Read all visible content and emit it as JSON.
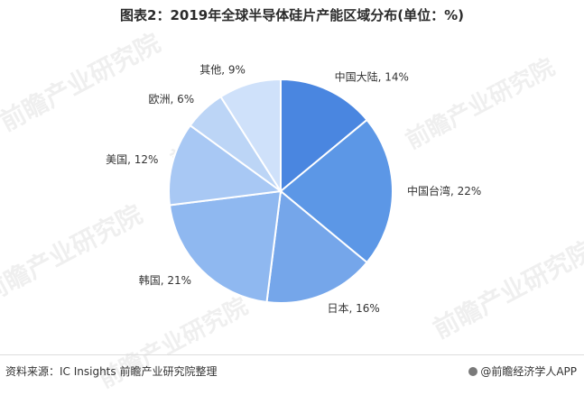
{
  "title": "图表2：2019年全球半导体硅片产能区域分布(单位：%)",
  "source": "资料来源：IC Insights 前瞻产业研究院整理",
  "brand": "@前瞻经济学人APP",
  "watermark": "前瞻产业研究院",
  "chart_data": {
    "type": "pie",
    "title": "图表2：2019年全球半导体硅片产能区域分布(单位：%)",
    "unit": "%",
    "start_angle_deg": 0,
    "direction": "clockwise",
    "slices": [
      {
        "label": "中国大陆",
        "value": 14,
        "color": "#4a86e0"
      },
      {
        "label": "中国台湾",
        "value": 22,
        "color": "#5c97e6"
      },
      {
        "label": "日本",
        "value": 16,
        "color": "#75a6ea"
      },
      {
        "label": "韩国",
        "value": 21,
        "color": "#8fb8f0"
      },
      {
        "label": "美国",
        "value": 12,
        "color": "#a8c8f4"
      },
      {
        "label": "欧洲",
        "value": 6,
        "color": "#bcd5f6"
      },
      {
        "label": "其他",
        "value": 9,
        "color": "#cfe1fa"
      }
    ]
  }
}
